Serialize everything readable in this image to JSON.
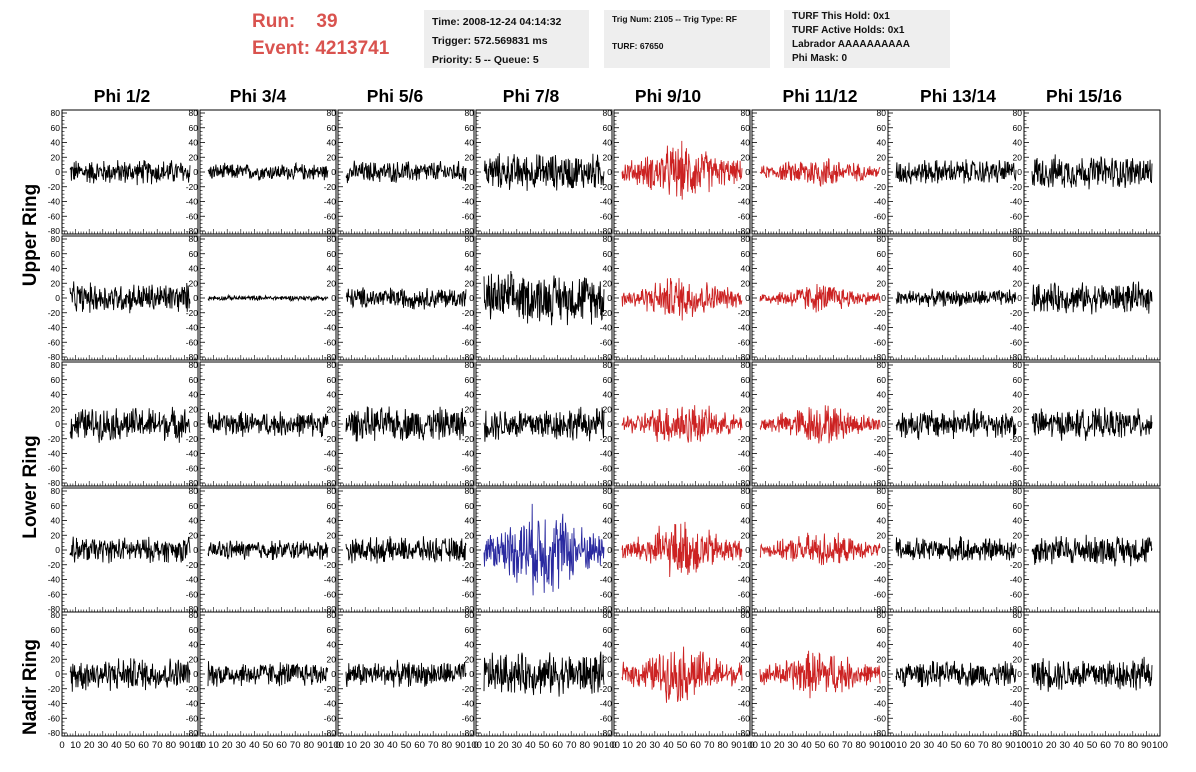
{
  "run_box": {
    "run": "Run:    39",
    "event": "Event: 4213741"
  },
  "time_box": {
    "time": "Time: 2008-12-24 04:14:32",
    "trigger": "Trigger: 572.569831 ms",
    "priority": "Priority: 5 -- Queue: 5"
  },
  "trig_box": {
    "trig": "Trig Num: 2105 -- Trig Type: RF",
    "turf": "TURF: 67650"
  },
  "turf_box": {
    "this_hold": "TURF This Hold: 0x1",
    "active_holds": "TURF Active Holds: 0x1",
    "labrador": "Labrador AAAAAAAAAA",
    "phi_mask": "Phi Mask: 0"
  },
  "phi_headers": [
    "Phi 1/2",
    "Phi 3/4",
    "Phi 5/6",
    "Phi 7/8",
    "Phi 9/10",
    "Phi 11/12",
    "Phi 13/14",
    "Phi 15/16"
  ],
  "ring_labels": [
    "Upper Ring",
    "Lower Ring",
    "Nadir Ring"
  ],
  "colors": {
    "normal": "#000000",
    "triggered": "#cc2222",
    "highlight": "#2a2aa0",
    "header_text": "#d9534f"
  },
  "chart_data": {
    "type": "line",
    "xlim": [
      0,
      100
    ],
    "ylim": [
      -80,
      80
    ],
    "yticks": [
      "80",
      "60",
      "40",
      "20",
      "0",
      "-20",
      "-40",
      "-60",
      "-80"
    ],
    "xticks": [
      "0",
      "10",
      "20",
      "30",
      "40",
      "50",
      "60",
      "70",
      "80",
      "90",
      "100"
    ],
    "grid": false,
    "panel_rows": 5,
    "panel_cols": 8,
    "samples_per_trace": 260,
    "amplitudes": [
      [
        15,
        10,
        13,
        22,
        35,
        20,
        15,
        20
      ],
      [
        18,
        3,
        13,
        30,
        28,
        18,
        10,
        18
      ],
      [
        20,
        15,
        20,
        20,
        28,
        25,
        18,
        18
      ],
      [
        15,
        12,
        15,
        55,
        35,
        22,
        15,
        18
      ],
      [
        20,
        15,
        15,
        25,
        35,
        30,
        15,
        20
      ]
    ],
    "trace_colors": [
      [
        "normal",
        "normal",
        "normal",
        "normal",
        "triggered",
        "triggered",
        "normal",
        "normal"
      ],
      [
        "normal",
        "normal",
        "normal",
        "normal",
        "triggered",
        "triggered",
        "normal",
        "normal"
      ],
      [
        "normal",
        "normal",
        "normal",
        "normal",
        "triggered",
        "triggered",
        "normal",
        "normal"
      ],
      [
        "normal",
        "normal",
        "normal",
        "highlight",
        "triggered",
        "triggered",
        "normal",
        "normal"
      ],
      [
        "normal",
        "normal",
        "normal",
        "normal",
        "triggered",
        "triggered",
        "normal",
        "normal"
      ]
    ]
  }
}
